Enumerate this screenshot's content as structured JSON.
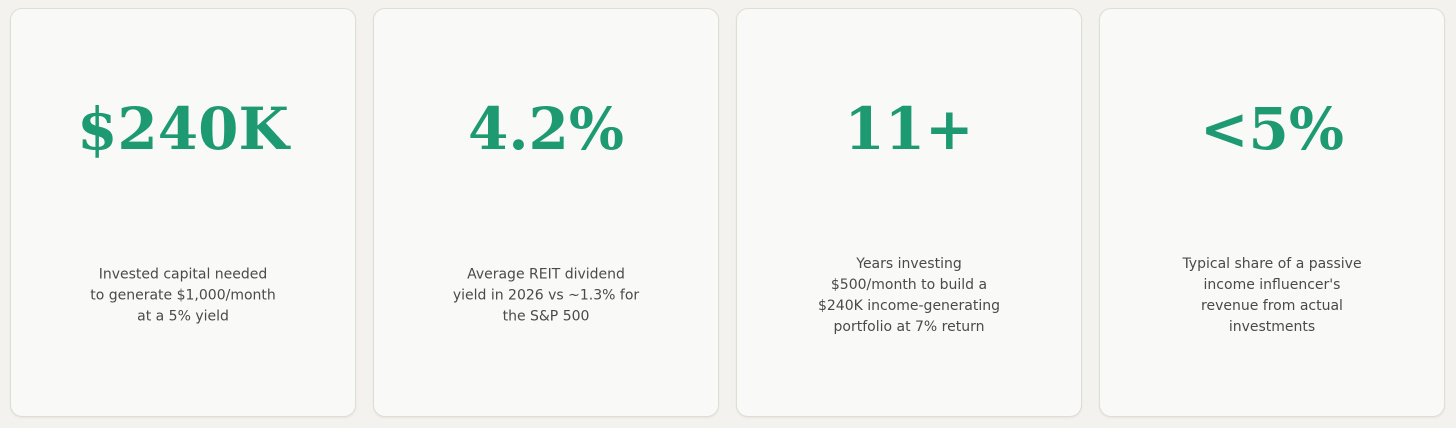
{
  "cards": [
    {
      "value": "$240K",
      "description": [
        "Invested capital needed",
        "to generate $1,000/month",
        "at a 5% yield"
      ]
    },
    {
      "value": "4.2%",
      "description": [
        "Average REIT dividend",
        "yield in 2026 vs ~1.3% for",
        "the S&P 500"
      ]
    },
    {
      "value": "11+",
      "description": [
        "Years investing",
        "$500/month to build a",
        "$240K income-generating",
        "portfolio at 7% return"
      ]
    },
    {
      "value": "<5%",
      "description": [
        "Typical share of a passive",
        "income influencer's",
        "revenue from actual",
        "investments"
      ]
    }
  ]
}
